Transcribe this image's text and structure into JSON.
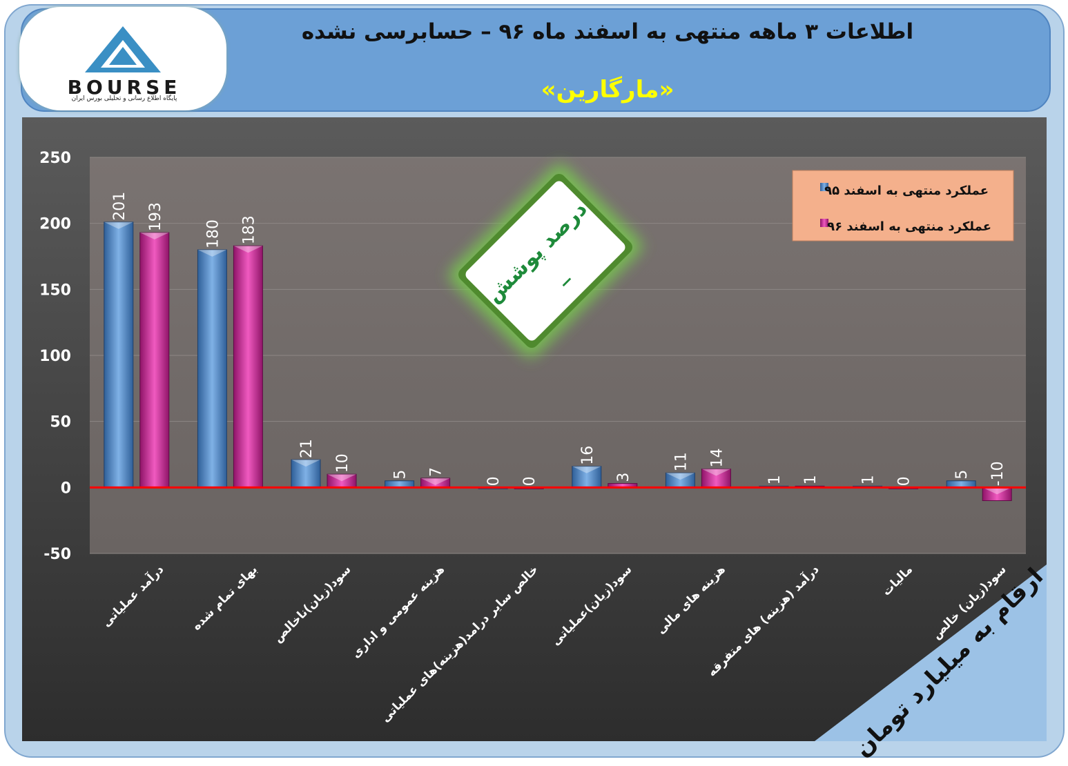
{
  "header": {
    "title": "اطلاعات ۳  ماهه منتهی به اسفند ماه ۹۶ – حسابرسی نشده",
    "subtitle": "«مارگارین»"
  },
  "logo": {
    "text": "BOURSE",
    "subtext": "پایگاه اطلاع رسانی و تحلیلی بورس ایران"
  },
  "badge": {
    "label": "درصد پوشش",
    "value": "_"
  },
  "corner_note": "ارقام به میلیارد تومان",
  "colors": {
    "series1": "#4f86c4",
    "series2": "#d02a9a",
    "zero_line": "#ff0000",
    "badge_glow": "#78c850",
    "legend_bg": "#f4b08c"
  },
  "chart_data": {
    "type": "bar",
    "categories": [
      "درآمد عملیاتی",
      "بهای تمام شده",
      "سود(زیان)ناخالص",
      "هزینه عمومی و اداری",
      "خالص سایر درامد(هزینه)های عملیاتی",
      "سود(زیان)عملیاتی",
      "هزینه های مالی",
      "درآمد (هزینه) های متفرقه",
      "مالیات",
      "سود(زیان) خالص"
    ],
    "series": [
      {
        "name": "عملکرد منتهی به اسفند ۹۵",
        "values": [
          201,
          180,
          21,
          5,
          0,
          16,
          11,
          1,
          1,
          5
        ]
      },
      {
        "name": "عملکرد منتهی به اسفند  ۹۶",
        "values": [
          193,
          183,
          10,
          7,
          0,
          3,
          14,
          1,
          0,
          -10
        ]
      }
    ],
    "yticks": [
      "250",
      "200",
      "150",
      "100",
      "50",
      "0",
      "-50"
    ],
    "ylim": [
      -50,
      250
    ],
    "grid": true,
    "legend": "top-right"
  }
}
